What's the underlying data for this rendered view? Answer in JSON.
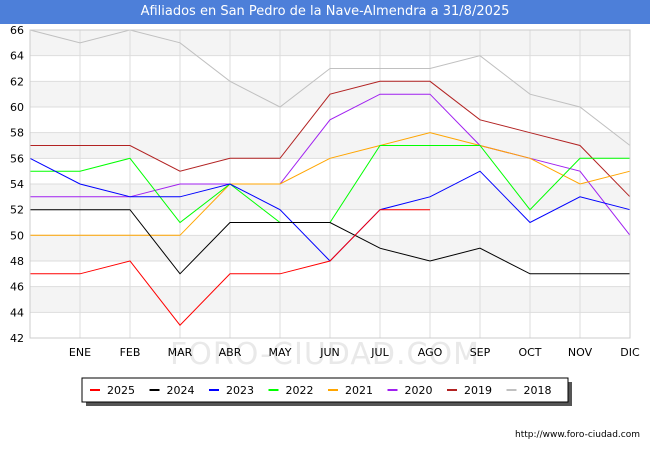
{
  "page": {
    "title": "Afiliados en San Pedro de la Nave-Almendra a 31/8/2025",
    "watermark": "FORO-CIUDAD.COM",
    "footer_url": "http://www.foro-ciudad.com"
  },
  "chart_data": {
    "type": "line",
    "title": "Afiliados en San Pedro de la Nave-Almendra a 31/8/2025",
    "xlabel": "",
    "ylabel": "",
    "categories": [
      "",
      "ENE",
      "FEB",
      "MAR",
      "ABR",
      "MAY",
      "JUN",
      "JUL",
      "AGO",
      "SEP",
      "OCT",
      "NOV",
      "DIC"
    ],
    "ylim": [
      42,
      66
    ],
    "yticks": [
      42,
      44,
      46,
      48,
      50,
      52,
      54,
      56,
      58,
      60,
      62,
      64,
      66
    ],
    "grid": true,
    "legend_position": "bottom",
    "series": [
      {
        "name": "2025",
        "color": "#ff0000",
        "values": [
          47,
          47,
          48,
          43,
          47,
          47,
          48,
          52,
          52,
          null,
          null,
          null,
          null
        ]
      },
      {
        "name": "2024",
        "color": "#000000",
        "values": [
          52,
          52,
          52,
          47,
          51,
          51,
          51,
          49,
          48,
          49,
          47,
          47,
          47
        ]
      },
      {
        "name": "2023",
        "color": "#0000ff",
        "values": [
          56,
          54,
          53,
          53,
          54,
          52,
          48,
          52,
          53,
          55,
          51,
          53,
          52
        ]
      },
      {
        "name": "2022",
        "color": "#00ff00",
        "values": [
          55,
          55,
          56,
          51,
          54,
          51,
          51,
          57,
          57,
          57,
          52,
          56,
          56
        ]
      },
      {
        "name": "2021",
        "color": "#ffa500",
        "values": [
          50,
          50,
          50,
          50,
          54,
          54,
          56,
          57,
          58,
          57,
          56,
          54,
          55
        ]
      },
      {
        "name": "2020",
        "color": "#a020f0",
        "values": [
          53,
          53,
          53,
          54,
          54,
          54,
          59,
          61,
          61,
          57,
          56,
          55,
          50
        ]
      },
      {
        "name": "2019",
        "color": "#b22222",
        "values": [
          57,
          57,
          57,
          55,
          56,
          56,
          61,
          62,
          62,
          59,
          58,
          57,
          53
        ]
      },
      {
        "name": "2018",
        "color": "#c0c0c0",
        "values": [
          66,
          65,
          66,
          65,
          62,
          60,
          63,
          63,
          63,
          64,
          61,
          60,
          57
        ]
      }
    ]
  }
}
